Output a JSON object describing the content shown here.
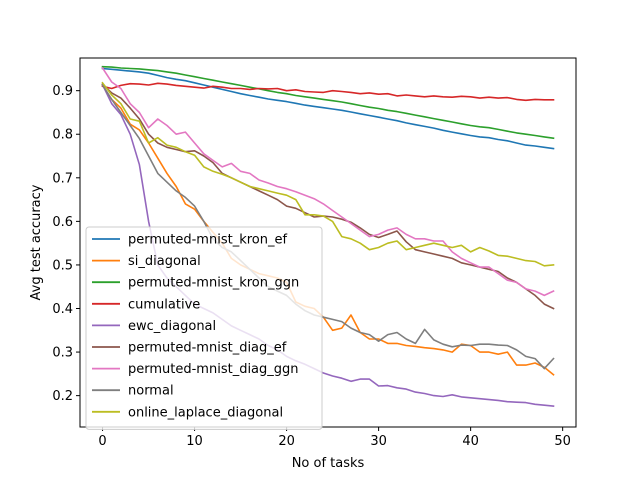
{
  "chart_data": {
    "type": "line",
    "xlabel": "No of tasks",
    "ylabel": "Avg test accuracy",
    "xlim": [
      -2.45,
      51.45
    ],
    "ylim": [
      0.128,
      0.975
    ],
    "xticks": [
      0,
      10,
      20,
      30,
      40,
      50
    ],
    "yticks": [
      0.2,
      0.3,
      0.4,
      0.5,
      0.6,
      0.7,
      0.8,
      0.9
    ],
    "legend_position": "lower-left",
    "x": [
      0,
      1,
      2,
      3,
      4,
      5,
      6,
      7,
      8,
      9,
      10,
      11,
      12,
      13,
      14,
      15,
      16,
      17,
      18,
      19,
      20,
      21,
      22,
      23,
      24,
      25,
      26,
      27,
      28,
      29,
      30,
      31,
      32,
      33,
      34,
      35,
      36,
      37,
      38,
      39,
      40,
      41,
      42,
      43,
      44,
      45,
      46,
      47,
      48,
      49
    ],
    "series": [
      {
        "name": "permuted-mnist_kron_ef",
        "color": "#1f77b4",
        "values": [
          0.951,
          0.949,
          0.947,
          0.945,
          0.943,
          0.94,
          0.935,
          0.93,
          0.926,
          0.923,
          0.918,
          0.913,
          0.908,
          0.903,
          0.898,
          0.893,
          0.889,
          0.885,
          0.881,
          0.878,
          0.875,
          0.871,
          0.867,
          0.864,
          0.861,
          0.858,
          0.855,
          0.851,
          0.847,
          0.843,
          0.839,
          0.835,
          0.831,
          0.826,
          0.822,
          0.818,
          0.814,
          0.809,
          0.805,
          0.801,
          0.797,
          0.794,
          0.792,
          0.788,
          0.785,
          0.78,
          0.775,
          0.773,
          0.77,
          0.767
        ]
      },
      {
        "name": "si_diagonal",
        "color": "#ff7f0e",
        "values": [
          0.912,
          0.88,
          0.86,
          0.823,
          0.81,
          0.78,
          0.745,
          0.71,
          0.68,
          0.64,
          0.628,
          0.6,
          0.575,
          0.55,
          0.515,
          0.5,
          0.49,
          0.48,
          0.475,
          0.47,
          0.46,
          0.415,
          0.405,
          0.4,
          0.38,
          0.35,
          0.355,
          0.385,
          0.345,
          0.33,
          0.33,
          0.32,
          0.32,
          0.315,
          0.313,
          0.31,
          0.308,
          0.305,
          0.3,
          0.318,
          0.315,
          0.3,
          0.3,
          0.295,
          0.3,
          0.27,
          0.27,
          0.275,
          0.265,
          0.248
        ]
      },
      {
        "name": "permuted-mnist_kron_ggn",
        "color": "#2ca02c",
        "values": [
          0.955,
          0.954,
          0.952,
          0.951,
          0.95,
          0.948,
          0.946,
          0.943,
          0.94,
          0.936,
          0.932,
          0.928,
          0.924,
          0.92,
          0.916,
          0.912,
          0.908,
          0.904,
          0.9,
          0.896,
          0.893,
          0.889,
          0.886,
          0.883,
          0.88,
          0.877,
          0.874,
          0.87,
          0.866,
          0.862,
          0.859,
          0.855,
          0.852,
          0.848,
          0.844,
          0.84,
          0.836,
          0.832,
          0.828,
          0.824,
          0.82,
          0.817,
          0.815,
          0.811,
          0.807,
          0.803,
          0.8,
          0.797,
          0.794,
          0.791
        ]
      },
      {
        "name": "cumulative",
        "color": "#d62728",
        "values": [
          0.91,
          0.905,
          0.912,
          0.916,
          0.915,
          0.913,
          0.917,
          0.915,
          0.912,
          0.91,
          0.908,
          0.906,
          0.91,
          0.908,
          0.905,
          0.905,
          0.903,
          0.905,
          0.904,
          0.905,
          0.9,
          0.902,
          0.898,
          0.897,
          0.896,
          0.9,
          0.898,
          0.896,
          0.893,
          0.895,
          0.892,
          0.893,
          0.888,
          0.89,
          0.888,
          0.886,
          0.888,
          0.886,
          0.885,
          0.887,
          0.886,
          0.883,
          0.885,
          0.883,
          0.884,
          0.88,
          0.878,
          0.88,
          0.879,
          0.879
        ]
      },
      {
        "name": "ewc_diagonal",
        "color": "#9467bd",
        "values": [
          0.914,
          0.87,
          0.845,
          0.8,
          0.73,
          0.6,
          0.5,
          0.47,
          0.45,
          0.43,
          0.41,
          0.4,
          0.39,
          0.375,
          0.36,
          0.35,
          0.34,
          0.33,
          0.315,
          0.305,
          0.29,
          0.28,
          0.272,
          0.262,
          0.252,
          0.245,
          0.24,
          0.233,
          0.238,
          0.238,
          0.222,
          0.223,
          0.218,
          0.215,
          0.208,
          0.205,
          0.2,
          0.198,
          0.202,
          0.197,
          0.195,
          0.193,
          0.191,
          0.189,
          0.186,
          0.185,
          0.184,
          0.18,
          0.178,
          0.176
        ]
      },
      {
        "name": "permuted-mnist_diag_ef",
        "color": "#8c564b",
        "values": [
          0.915,
          0.895,
          0.883,
          0.86,
          0.835,
          0.8,
          0.78,
          0.77,
          0.765,
          0.76,
          0.762,
          0.75,
          0.735,
          0.71,
          0.7,
          0.69,
          0.68,
          0.67,
          0.66,
          0.65,
          0.635,
          0.63,
          0.62,
          0.61,
          0.612,
          0.61,
          0.605,
          0.598,
          0.585,
          0.57,
          0.563,
          0.57,
          0.578,
          0.553,
          0.535,
          0.53,
          0.525,
          0.52,
          0.515,
          0.505,
          0.5,
          0.495,
          0.49,
          0.485,
          0.47,
          0.46,
          0.445,
          0.43,
          0.41,
          0.4
        ]
      },
      {
        "name": "permuted-mnist_diag_ggn",
        "color": "#e377c2",
        "values": [
          0.952,
          0.92,
          0.905,
          0.87,
          0.85,
          0.815,
          0.835,
          0.82,
          0.8,
          0.805,
          0.78,
          0.755,
          0.74,
          0.725,
          0.733,
          0.715,
          0.71,
          0.695,
          0.688,
          0.68,
          0.675,
          0.668,
          0.66,
          0.652,
          0.64,
          0.625,
          0.61,
          0.595,
          0.58,
          0.565,
          0.57,
          0.58,
          0.585,
          0.57,
          0.56,
          0.56,
          0.555,
          0.555,
          0.53,
          0.515,
          0.505,
          0.495,
          0.495,
          0.48,
          0.465,
          0.46,
          0.445,
          0.44,
          0.43,
          0.44
        ]
      },
      {
        "name": "normal",
        "color": "#7f7f7f",
        "values": [
          0.913,
          0.88,
          0.85,
          0.82,
          0.79,
          0.75,
          0.71,
          0.69,
          0.67,
          0.655,
          0.635,
          0.6,
          0.56,
          0.54,
          0.53,
          0.51,
          0.49,
          0.47,
          0.45,
          0.44,
          0.43,
          0.41,
          0.395,
          0.385,
          0.38,
          0.375,
          0.37,
          0.355,
          0.345,
          0.34,
          0.325,
          0.34,
          0.345,
          0.33,
          0.32,
          0.352,
          0.328,
          0.318,
          0.312,
          0.316,
          0.315,
          0.318,
          0.318,
          0.316,
          0.315,
          0.305,
          0.29,
          0.285,
          0.262,
          0.285
        ]
      },
      {
        "name": "online_laplace_diagonal",
        "color": "#bcbd22",
        "values": [
          0.918,
          0.89,
          0.87,
          0.835,
          0.83,
          0.78,
          0.792,
          0.775,
          0.77,
          0.76,
          0.752,
          0.725,
          0.715,
          0.708,
          0.7,
          0.69,
          0.68,
          0.675,
          0.67,
          0.665,
          0.66,
          0.65,
          0.615,
          0.615,
          0.612,
          0.6,
          0.565,
          0.56,
          0.55,
          0.535,
          0.54,
          0.55,
          0.555,
          0.535,
          0.54,
          0.545,
          0.55,
          0.545,
          0.54,
          0.545,
          0.53,
          0.54,
          0.532,
          0.522,
          0.52,
          0.515,
          0.51,
          0.508,
          0.498,
          0.5
        ]
      }
    ]
  }
}
